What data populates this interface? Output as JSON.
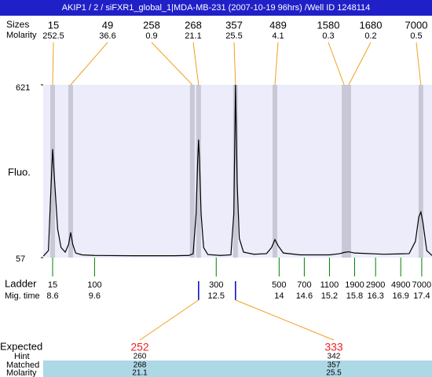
{
  "chart_data": {
    "type": "line",
    "title": "AKIP1 / 2 / siFXR1_global_1|MDA-MB-231 (2007-10-19 96hrs) /Well ID 1248114",
    "y_label": "Fluo.",
    "color": "#000000",
    "xlim": [
      8.375,
      17.645
    ],
    "ylim": [
      57,
      621
    ],
    "yticks": [
      57,
      621
    ],
    "x": [
      8.38,
      8.5,
      8.55,
      8.6,
      8.65,
      8.72,
      8.8,
      8.9,
      8.98,
      9.03,
      9.08,
      9.15,
      9.3,
      9.6,
      10.5,
      11.5,
      11.85,
      11.95,
      12.02,
      12.06,
      12.08,
      12.1,
      12.14,
      12.2,
      12.3,
      12.6,
      12.85,
      12.92,
      12.96,
      13.0,
      13.05,
      13.15,
      13.4,
      13.7,
      13.82,
      13.9,
      13.98,
      14.1,
      14.5,
      15.2,
      15.45,
      15.55,
      15.66,
      15.8,
      16.5,
      17.1,
      17.25,
      17.33,
      17.38,
      17.43,
      17.52,
      17.645
    ],
    "values": [
      62,
      80,
      250,
      411,
      300,
      150,
      90,
      75,
      100,
      139,
      100,
      72,
      66,
      64,
      63,
      63,
      64,
      70,
      200,
      380,
      442,
      380,
      200,
      90,
      67,
      64,
      66,
      200,
      621,
      300,
      120,
      75,
      68,
      70,
      90,
      116,
      95,
      72,
      66,
      66,
      70,
      74,
      76,
      72,
      68,
      70,
      110,
      190,
      206,
      170,
      80,
      64
    ],
    "peaks": {
      "size_label": "Sizes",
      "molarity_label": "Molarity",
      "sizes": [
        15,
        49,
        258,
        268,
        357,
        489,
        1580,
        1680,
        7000
      ],
      "molarity": [
        252.5,
        36.6,
        0.9,
        21.1,
        25.5,
        4.1,
        0.3,
        0.2,
        0.5
      ],
      "times": [
        8.6,
        9.03,
        11.93,
        12.08,
        12.96,
        13.9,
        15.55,
        15.66,
        17.38
      ]
    },
    "ladder": {
      "label": "Ladder",
      "time_label": "Mig. time",
      "color": "#008000",
      "sizes": [
        15,
        100,
        300,
        500,
        700,
        1100,
        1900,
        2900,
        4900,
        7000
      ],
      "times": [
        8.6,
        9.6,
        12.5,
        14,
        14.6,
        15.2,
        15.8,
        16.3,
        16.9,
        17.4
      ]
    },
    "expected": {
      "label": "Expected",
      "hint_label": "Hint",
      "matched_label": "Matched",
      "molarity_label": "Molarity",
      "expected": [
        252,
        333
      ],
      "hint": [
        260,
        342
      ],
      "matched": [
        268,
        357
      ],
      "molarity": [
        21.1,
        25.5
      ],
      "times": [
        12.08,
        12.96
      ]
    }
  }
}
